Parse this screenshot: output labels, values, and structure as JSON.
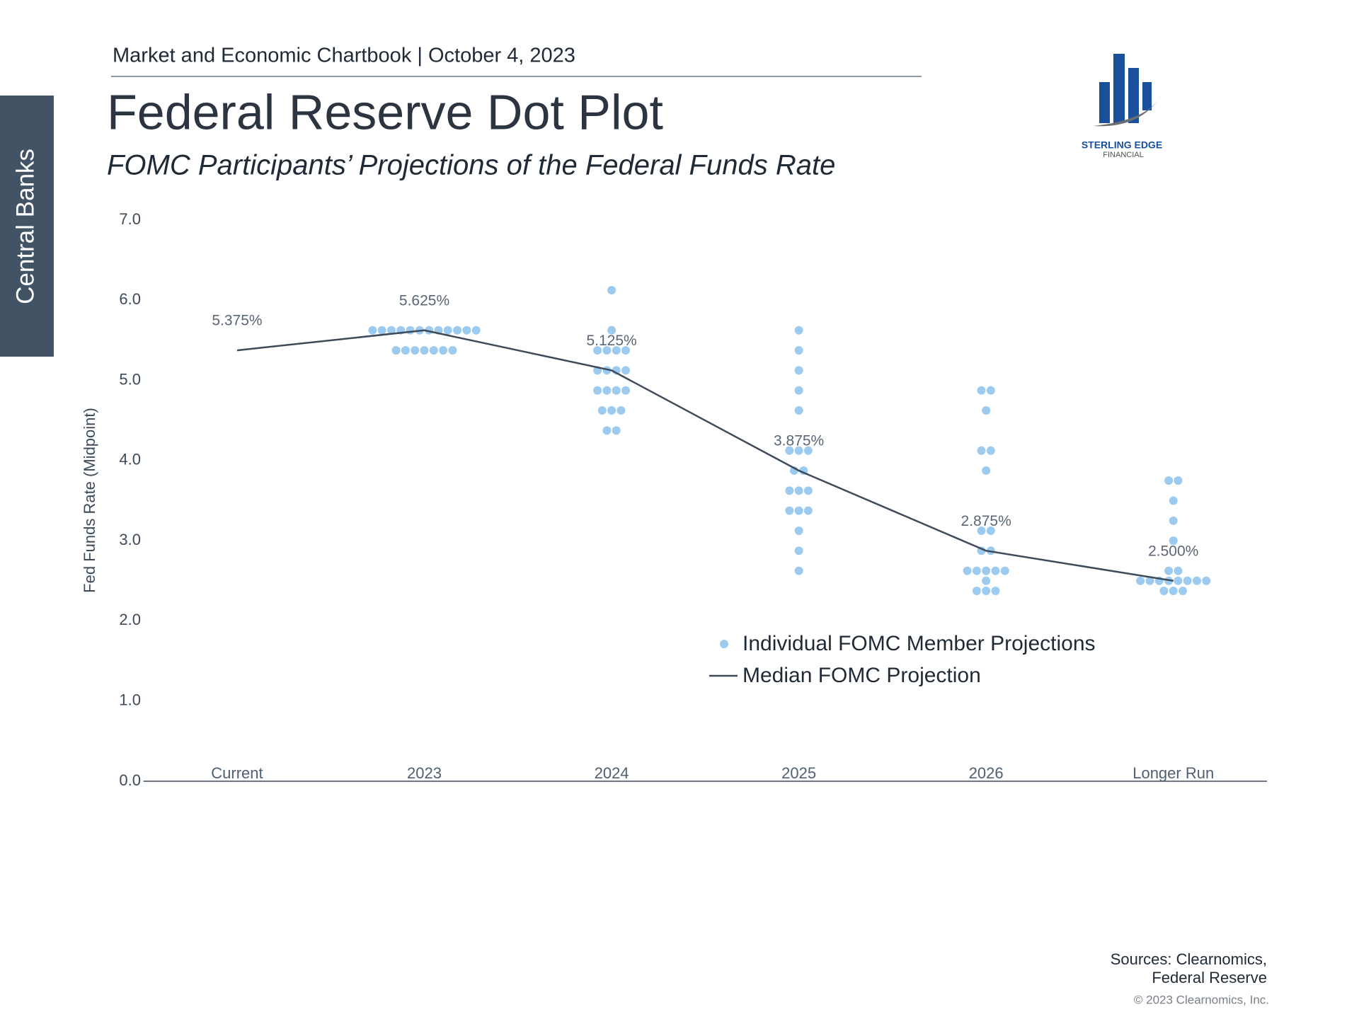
{
  "page": {
    "header": "Market and Economic Chartbook | October 4, 2023",
    "section_tab": "Central Banks",
    "logo": {
      "name": "STERLING EDGE",
      "tagline": "FINANCIAL"
    },
    "sources": [
      "Sources: Clearnomics,",
      "Federal Reserve"
    ],
    "copyright": "© 2023 Clearnomics, Inc."
  },
  "chart_data": {
    "type": "dot",
    "title": "Federal Reserve Dot Plot",
    "subtitle": "FOMC Participants’ Projections of the Federal Funds Rate",
    "y_label": "Fed Funds Rate (Midpoint)",
    "categories": [
      "Current",
      "2023",
      "2024",
      "2025",
      "2026",
      "Longer Run"
    ],
    "series": [
      {
        "name": "Individual FOMC Member Projections",
        "color": "#9dcbf0",
        "values": [
          [],
          [
            5.625,
            5.625,
            5.625,
            5.625,
            5.625,
            5.625,
            5.625,
            5.625,
            5.625,
            5.625,
            5.625,
            5.625,
            5.375,
            5.375,
            5.375,
            5.375,
            5.375,
            5.375,
            5.375
          ],
          [
            6.125,
            5.625,
            5.375,
            5.375,
            5.375,
            5.375,
            5.125,
            5.125,
            5.125,
            5.125,
            4.875,
            4.875,
            4.875,
            4.875,
            4.625,
            4.625,
            4.625,
            4.375,
            4.375
          ],
          [
            5.625,
            5.375,
            5.125,
            4.875,
            4.625,
            4.125,
            4.125,
            4.125,
            3.875,
            3.875,
            3.625,
            3.625,
            3.625,
            3.375,
            3.375,
            3.375,
            3.125,
            2.875,
            2.625
          ],
          [
            4.875,
            4.875,
            4.625,
            4.125,
            4.125,
            3.875,
            3.125,
            3.125,
            2.875,
            2.875,
            2.625,
            2.625,
            2.625,
            2.625,
            2.625,
            2.5,
            2.375,
            2.375,
            2.375
          ],
          [
            3.75,
            3.75,
            3.5,
            3.25,
            3.0,
            2.625,
            2.625,
            2.5,
            2.5,
            2.5,
            2.5,
            2.5,
            2.5,
            2.5,
            2.5,
            2.375,
            2.375,
            2.375
          ]
        ]
      },
      {
        "name": "Median FOMC Projection",
        "color": "#3d4a5a",
        "values": [
          5.375,
          5.625,
          5.125,
          3.875,
          2.875,
          2.5
        ],
        "value_labels": [
          "5.375%",
          "5.625%",
          "5.125%",
          "3.875%",
          "2.875%",
          "2.500%"
        ]
      }
    ],
    "ylim": [
      0,
      7
    ],
    "yticks": [
      {
        "value": 0,
        "label": "0.0"
      },
      {
        "value": 1,
        "label": "1.0"
      },
      {
        "value": 2,
        "label": "2.0"
      },
      {
        "value": 3,
        "label": "3.0"
      },
      {
        "value": 4,
        "label": "4.0"
      },
      {
        "value": 5,
        "label": "5.0"
      },
      {
        "value": 6,
        "label": "6.0"
      },
      {
        "value": 7,
        "label": "7.0"
      }
    ],
    "grid": false
  }
}
